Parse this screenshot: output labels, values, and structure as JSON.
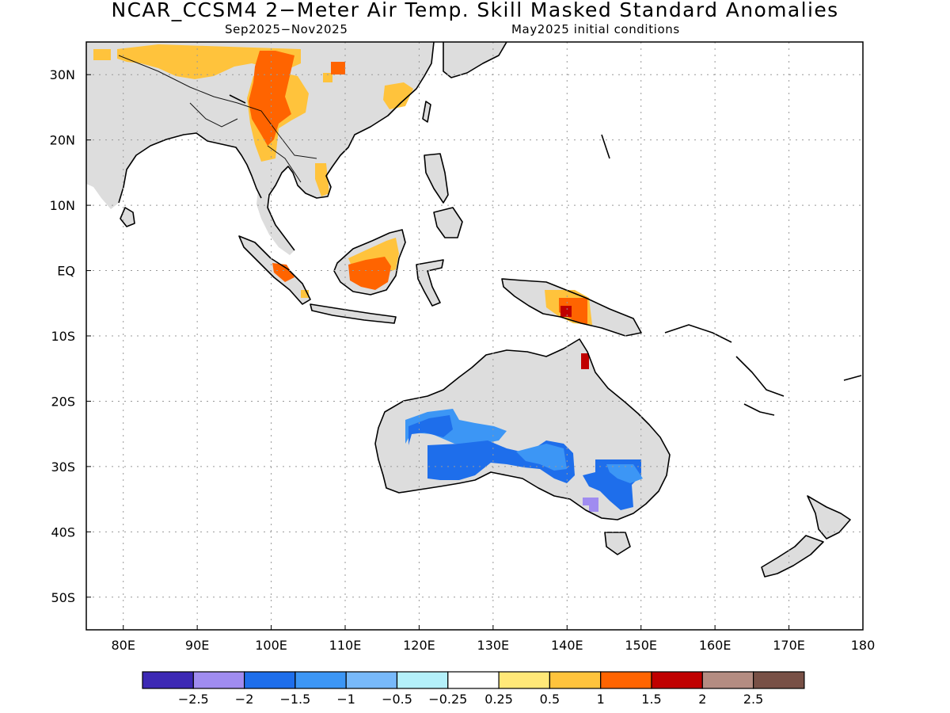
{
  "header": {
    "title": "NCAR_CCSM4 2−Meter Air Temp. Skill Masked Standard Anomalies",
    "period": "Sep2025−Nov2025",
    "initial_conditions": "May2025 initial conditions"
  },
  "map": {
    "lon_range": [
      75,
      180
    ],
    "lat_range": [
      -55,
      35
    ],
    "lat_labels": [
      {
        "lat": 30,
        "text": "30N"
      },
      {
        "lat": 20,
        "text": "20N"
      },
      {
        "lat": 10,
        "text": "10N"
      },
      {
        "lat": 0,
        "text": "EQ"
      },
      {
        "lat": -10,
        "text": "10S"
      },
      {
        "lat": -20,
        "text": "20S"
      },
      {
        "lat": -30,
        "text": "30S"
      },
      {
        "lat": -40,
        "text": "40S"
      },
      {
        "lat": -50,
        "text": "50S"
      }
    ],
    "lon_labels": [
      {
        "lon": 80,
        "text": "80E"
      },
      {
        "lon": 90,
        "text": "90E"
      },
      {
        "lon": 100,
        "text": "100E"
      },
      {
        "lon": 110,
        "text": "110E"
      },
      {
        "lon": 120,
        "text": "120E"
      },
      {
        "lon": 130,
        "text": "130E"
      },
      {
        "lon": 140,
        "text": "140E"
      },
      {
        "lon": 150,
        "text": "150E"
      },
      {
        "lon": 160,
        "text": "160E"
      },
      {
        "lon": 170,
        "text": "170E"
      },
      {
        "lon": 180,
        "text": "180"
      }
    ],
    "grid": "dotted",
    "masked_color": "#dddddd",
    "anomaly_regions": [
      {
        "name": "Tibet and central Asia",
        "value": 0.5,
        "color": "#ffc33c"
      },
      {
        "name": "Southwest China",
        "value": 1.5,
        "color": "#ff6400"
      },
      {
        "name": "Indochina",
        "value": 0.5,
        "color": "#ffc33c"
      },
      {
        "name": "Borneo",
        "value": 1.5,
        "color": "#ff6400"
      },
      {
        "name": "Sumatra",
        "value": 1.5,
        "color": "#ff6400"
      },
      {
        "name": "New Guinea",
        "value": 1.5,
        "color": "#ff6400"
      },
      {
        "name": "New Guinea highlands",
        "value": 2,
        "color": "#c00000"
      },
      {
        "name": "Cape York",
        "value": 2,
        "color": "#c00000"
      },
      {
        "name": "Central Australia",
        "value": -1.5,
        "color": "#1e6eeb"
      },
      {
        "name": "Western Australia interior",
        "value": -1,
        "color": "#3c96f5"
      },
      {
        "name": "Southeast Australia",
        "value": -1.5,
        "color": "#1e6eeb"
      },
      {
        "name": "Victoria",
        "value": -2,
        "color": "#a08cf0"
      }
    ]
  },
  "colorbar": {
    "colors": [
      "#3c28b4",
      "#a08cf0",
      "#1e6eeb",
      "#3c96f5",
      "#78b9fa",
      "#b4f0fa",
      "#ffffff",
      "#ffe878",
      "#ffc33c",
      "#ff6400",
      "#c00000",
      "#b48c82",
      "#785046"
    ],
    "labels": [
      "−2.5",
      "−2",
      "−1.5",
      "−1",
      "−0.5",
      "−0.25",
      "0.25",
      "0.5",
      "1",
      "1.5",
      "2",
      "2.5"
    ]
  }
}
